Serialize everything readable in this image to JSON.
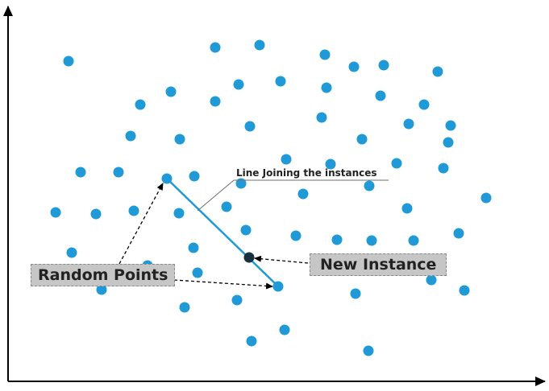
{
  "labels": {
    "random_points": "Random Points",
    "new_instance": "New Instance",
    "joining_line": "Line Joining the instances"
  },
  "colors": {
    "point": "#1f9ad6",
    "new_instance": "#17303e",
    "joining_line": "#1f9ad6",
    "axis": "#000000",
    "callout_bg": "#c6c6c6"
  }
}
